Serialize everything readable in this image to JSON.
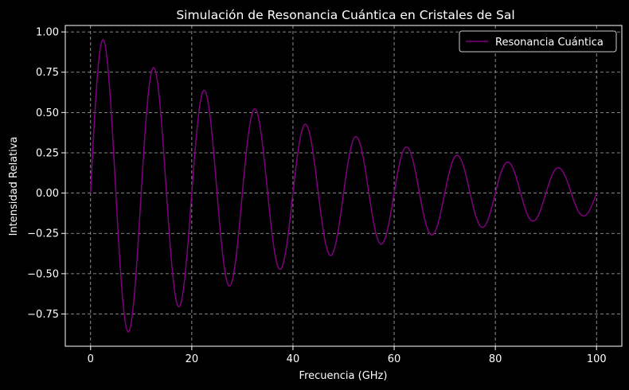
{
  "chart_data": {
    "type": "line",
    "title": "Simulación de Resonancia Cuántica en Cristales de Sal",
    "xlabel": "Frecuencia (GHz)",
    "ylabel": "Intensidad Relativa",
    "xlim": [
      -5,
      105
    ],
    "ylim": [
      -0.95,
      1.04
    ],
    "x_ticks": [
      0,
      20,
      40,
      60,
      80,
      100
    ],
    "y_ticks": [
      -0.75,
      -0.5,
      -0.25,
      0.0,
      0.25,
      0.5,
      0.75,
      1.0
    ],
    "x_tick_labels": [
      "0",
      "20",
      "40",
      "60",
      "80",
      "100"
    ],
    "y_tick_labels": [
      "−0.75",
      "−0.50",
      "−0.25",
      "0.00",
      "0.25",
      "0.50",
      "0.75",
      "1.00"
    ],
    "grid": true,
    "legend_position": "top-right",
    "series": [
      {
        "name": "Resonancia Cuántica",
        "color": "#800080",
        "model": {
          "form": "sin(2*pi*f*x)*exp(-d*x)",
          "f": 0.1,
          "d": 0.02
        },
        "x_range": [
          0,
          100
        ]
      }
    ]
  }
}
